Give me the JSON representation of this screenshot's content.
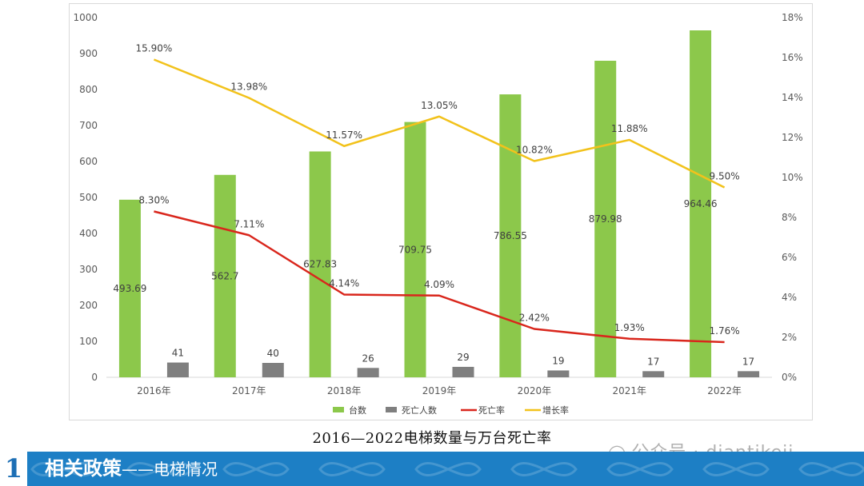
{
  "chart_data": {
    "type": "bar",
    "categories": [
      "2016年",
      "2017年",
      "2018年",
      "2019年",
      "2020年",
      "2021年",
      "2022年"
    ],
    "series": [
      {
        "name": "台数",
        "kind": "bar",
        "axis": "left",
        "color": "#8cc84b",
        "values": [
          493.69,
          562.7,
          627.83,
          709.75,
          786.55,
          879.98,
          964.46
        ],
        "labels": [
          "493.69",
          "562.7",
          "627.83",
          "709.75",
          "786.55",
          "879.98",
          "964.46"
        ]
      },
      {
        "name": "死亡人数",
        "kind": "bar",
        "axis": "left",
        "color": "#7f7f7f",
        "values": [
          41,
          40,
          26,
          29,
          19,
          17,
          17
        ],
        "labels": [
          "41",
          "40",
          "26",
          "29",
          "19",
          "17",
          "17"
        ]
      },
      {
        "name": "死亡率",
        "kind": "line",
        "axis": "right",
        "color": "#d9261c",
        "values": [
          8.3,
          7.11,
          4.14,
          4.09,
          2.42,
          1.93,
          1.76
        ],
        "labels": [
          "8.30%",
          "7.11%",
          "4.14%",
          "4.09%",
          "2.42%",
          "1.93%",
          "1.76%"
        ]
      },
      {
        "name": "增长率",
        "kind": "line",
        "axis": "right",
        "color": "#f2c21b",
        "values": [
          15.9,
          13.98,
          11.57,
          13.05,
          10.82,
          11.88,
          9.5
        ],
        "labels": [
          "15.90%",
          "13.98%",
          "11.57%",
          "13.05%",
          "10.82%",
          "11.88%",
          "9.50%"
        ]
      }
    ],
    "y_left": {
      "min": 0,
      "max": 1000,
      "ticks": [
        "0",
        "100",
        "200",
        "300",
        "400",
        "500",
        "600",
        "700",
        "800",
        "900",
        "1000"
      ]
    },
    "y_right": {
      "min": 0,
      "max": 18,
      "ticks": [
        "0%",
        "2%",
        "4%",
        "6%",
        "8%",
        "10%",
        "12%",
        "14%",
        "16%",
        "18%"
      ]
    },
    "grid": false,
    "legend_position": "bottom",
    "title": ""
  },
  "caption": "2016—2022电梯数量与万台死亡率",
  "watermark": {
    "icon": "wechat-icon",
    "text": "公众号 · diantikeji"
  },
  "footer": {
    "number": "1",
    "title": "相关政策",
    "subtitle": "——电梯情况",
    "color": "#1d7fc5"
  }
}
